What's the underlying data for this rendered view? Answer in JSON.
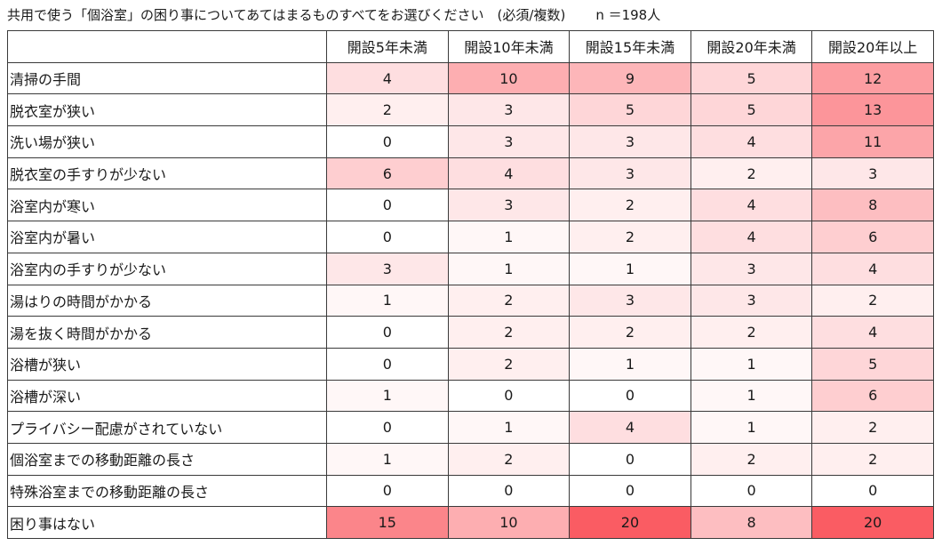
{
  "chart_data": {
    "type": "table",
    "title": "共用で使う「個浴室」の困り事についてあてはまるものすべてをお選びください　(必須/複数)",
    "n_label": "n ＝198人",
    "columns": [
      "開設5年未満",
      "開設10年未満",
      "開設15年未満",
      "開設20年未満",
      "開設20年以上"
    ],
    "rows": [
      {
        "label": "清掃の手間",
        "values": [
          4,
          10,
          9,
          5,
          12
        ]
      },
      {
        "label": "脱衣室が狭い",
        "values": [
          2,
          3,
          5,
          5,
          13
        ]
      },
      {
        "label": "洗い場が狭い",
        "values": [
          0,
          3,
          3,
          4,
          11
        ]
      },
      {
        "label": "脱衣室の手すりが少ない",
        "values": [
          6,
          4,
          3,
          2,
          3
        ]
      },
      {
        "label": "浴室内が寒い",
        "values": [
          0,
          3,
          2,
          4,
          8
        ]
      },
      {
        "label": "浴室内が暑い",
        "values": [
          0,
          1,
          2,
          4,
          6
        ]
      },
      {
        "label": "浴室内の手すりが少ない",
        "values": [
          3,
          1,
          1,
          3,
          4
        ]
      },
      {
        "label": "湯はりの時間がかかる",
        "values": [
          1,
          2,
          3,
          3,
          2
        ]
      },
      {
        "label": "湯を抜く時間がかかる",
        "values": [
          0,
          2,
          2,
          2,
          4
        ]
      },
      {
        "label": "浴槽が狭い",
        "values": [
          0,
          2,
          1,
          1,
          5
        ]
      },
      {
        "label": "浴槽が深い",
        "values": [
          1,
          0,
          0,
          1,
          6
        ]
      },
      {
        "label": "プライバシー配慮がされていない",
        "values": [
          0,
          1,
          4,
          1,
          2
        ]
      },
      {
        "label": "個浴室までの移動距離の長さ",
        "values": [
          1,
          2,
          0,
          2,
          2
        ]
      },
      {
        "label": "特殊浴室までの移動距離の長さ",
        "values": [
          0,
          0,
          0,
          0,
          0
        ]
      },
      {
        "label": "困り事はない",
        "values": [
          15,
          10,
          20,
          8,
          20
        ]
      }
    ],
    "heat_low": "#ffffff",
    "heat_high": "#fa5c63",
    "grid": true
  }
}
